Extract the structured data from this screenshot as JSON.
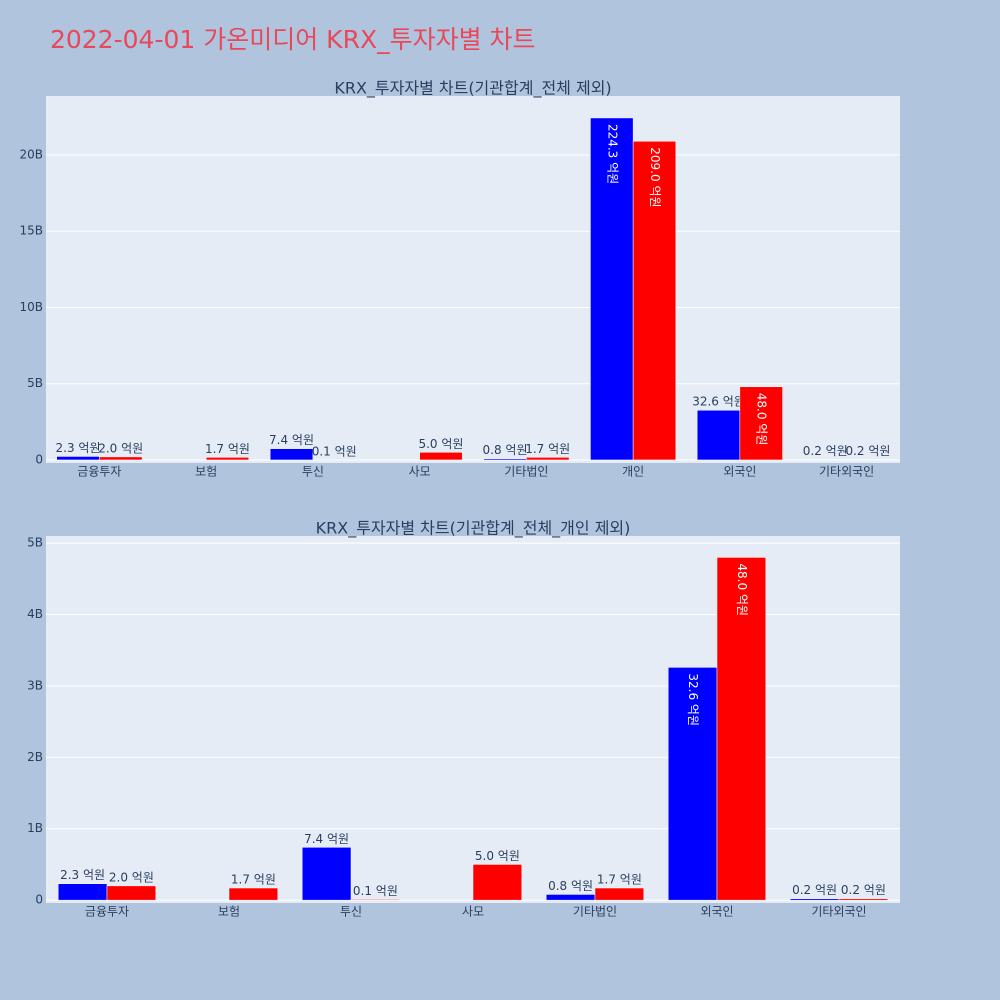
{
  "title": "2022-04-01 가온미디어 KRX_투자자별 차트",
  "chart_data": [
    {
      "type": "bar",
      "title": "KRX_투자자별 차트(기관합계_전체 제외)",
      "categories": [
        "금융투자",
        "보험",
        "투신",
        "사모",
        "기타법인",
        "개인",
        "외국인",
        "기타외국인"
      ],
      "series": [
        {
          "color": "#0000ff",
          "values": [
            230000000,
            null,
            740000000,
            null,
            80000000,
            22430000000,
            3260000000,
            20000000
          ],
          "value_labels": [
            "2.3 억원",
            null,
            "7.4 억원",
            null,
            "0.8 억원",
            "224.3 억원",
            "32.6 억원",
            "0.2 억원"
          ]
        },
        {
          "color": "#ff0000",
          "values": [
            200000000,
            170000000,
            10000000,
            500000000,
            170000000,
            20900000000,
            4800000000,
            20000000
          ],
          "value_labels": [
            "2.0 억원",
            "1.7 억원",
            "0.1 억원",
            "5.0 억원",
            "1.7 억원",
            "209.0 억원",
            "48.0 억원",
            "0.2 억원"
          ]
        }
      ],
      "ylim": [
        -200000000,
        23870000000
      ],
      "yticks": [
        {
          "value": 0,
          "label": "0"
        },
        {
          "value": 5000000000,
          "label": "5B"
        },
        {
          "value": 10000000000,
          "label": "10B"
        },
        {
          "value": 15000000000,
          "label": "15B"
        },
        {
          "value": 20000000000,
          "label": "20B"
        }
      ],
      "grid": true
    },
    {
      "type": "bar",
      "title": "KRX_투자자별 차트(기관합계_전체_개인 제외)",
      "categories": [
        "금융투자",
        "보험",
        "투신",
        "사모",
        "기타법인",
        "외국인",
        "기타외국인"
      ],
      "series": [
        {
          "color": "#0000ff",
          "values": [
            230000000,
            null,
            740000000,
            null,
            80000000,
            3260000000,
            20000000
          ],
          "value_labels": [
            "2.3 억원",
            null,
            "7.4 억원",
            null,
            "0.8 억원",
            "32.6 억원",
            "0.2 억원"
          ]
        },
        {
          "color": "#ff0000",
          "values": [
            200000000,
            170000000,
            10000000,
            500000000,
            170000000,
            4800000000,
            20000000
          ],
          "value_labels": [
            "2.0 억원",
            "1.7 억원",
            "0.1 억원",
            "5.0 억원",
            "1.7 억원",
            "48.0 억원",
            "0.2 억원"
          ]
        }
      ],
      "ylim": [
        -40000000,
        5100000000
      ],
      "yticks": [
        {
          "value": 0,
          "label": "0"
        },
        {
          "value": 1000000000,
          "label": "1B"
        },
        {
          "value": 2000000000,
          "label": "2B"
        },
        {
          "value": 3000000000,
          "label": "3B"
        },
        {
          "value": 4000000000,
          "label": "4B"
        },
        {
          "value": 5000000000,
          "label": "5B"
        }
      ],
      "grid": true
    }
  ]
}
